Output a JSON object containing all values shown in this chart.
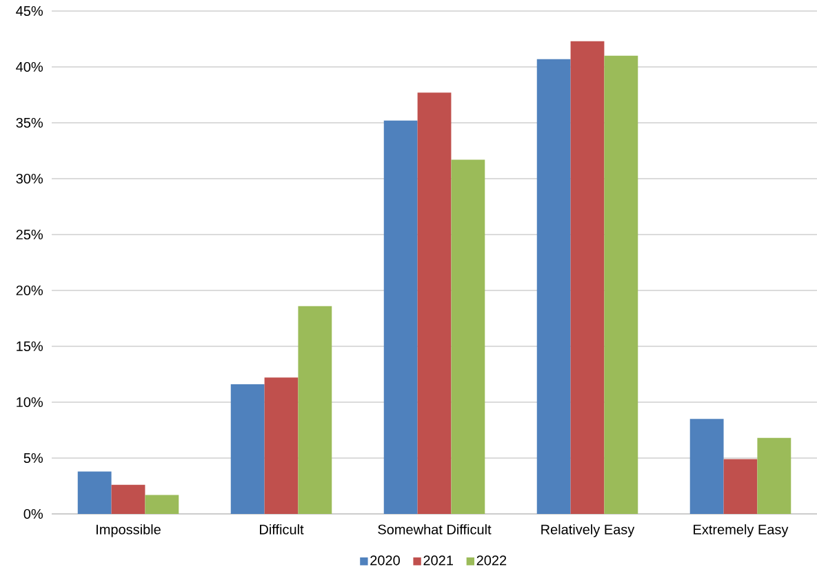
{
  "chart_data": {
    "type": "bar",
    "categories": [
      "Impossible",
      "Difficult",
      "Somewhat Difficult",
      "Relatively Easy",
      "Extremely Easy"
    ],
    "series": [
      {
        "name": "2020",
        "color": "#4f81bd",
        "values": [
          3.8,
          11.6,
          35.2,
          40.7,
          8.5
        ]
      },
      {
        "name": "2021",
        "color": "#c0504d",
        "values": [
          2.6,
          12.2,
          37.7,
          42.3,
          4.9
        ]
      },
      {
        "name": "2022",
        "color": "#9bbb59",
        "values": [
          1.7,
          18.6,
          31.7,
          41.0,
          6.8
        ]
      }
    ],
    "ylim": [
      0,
      45
    ],
    "yticks": [
      {
        "value": 0,
        "label": "0%"
      },
      {
        "value": 5,
        "label": "5%"
      },
      {
        "value": 10,
        "label": "10%"
      },
      {
        "value": 15,
        "label": "15%"
      },
      {
        "value": 20,
        "label": "20%"
      },
      {
        "value": 25,
        "label": "25%"
      },
      {
        "value": 30,
        "label": "30%"
      },
      {
        "value": 35,
        "label": "35%"
      },
      {
        "value": 40,
        "label": "40%"
      },
      {
        "value": 45,
        "label": "45%"
      }
    ],
    "grid": "y",
    "legend": "bottom"
  }
}
